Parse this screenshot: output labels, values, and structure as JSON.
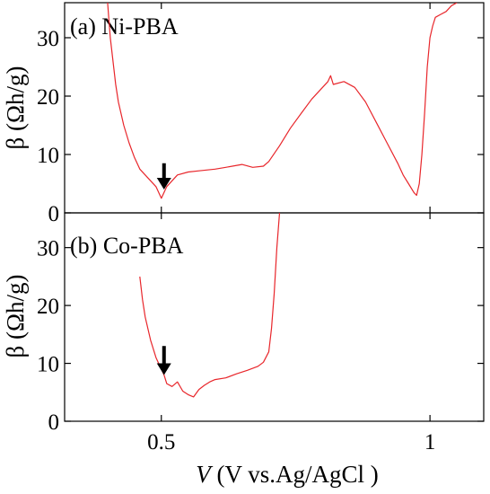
{
  "chart_data": [
    {
      "type": "line",
      "panel_label": "(a) Ni-PBA",
      "ylabel": "β (Ωh/g)",
      "xlabel": "",
      "xlim": [
        0.32,
        1.1
      ],
      "ylim": [
        0,
        36
      ],
      "yticks": [
        0,
        10,
        20,
        30
      ],
      "xticks": [
        0.5,
        1
      ],
      "xticklabels": [
        "",
        ""
      ],
      "grid": false,
      "series": [
        {
          "color": "#e8262b",
          "x": [
            0.4,
            0.405,
            0.41,
            0.415,
            0.42,
            0.43,
            0.44,
            0.45,
            0.46,
            0.47,
            0.48,
            0.49,
            0.495,
            0.5,
            0.505,
            0.51,
            0.52,
            0.53,
            0.55,
            0.57,
            0.6,
            0.62,
            0.65,
            0.67,
            0.69,
            0.7,
            0.72,
            0.74,
            0.76,
            0.78,
            0.8,
            0.81,
            0.815,
            0.82,
            0.84,
            0.86,
            0.88,
            0.9,
            0.92,
            0.94,
            0.95,
            0.96,
            0.97,
            0.975,
            0.98,
            0.985,
            0.99,
            0.995,
            1.0,
            1.005,
            1.01,
            1.02,
            1.03,
            1.04,
            1.05
          ],
          "y": [
            36,
            30,
            26,
            22,
            19,
            15,
            12,
            9.5,
            7.5,
            6.5,
            5.5,
            4.5,
            3.5,
            2.5,
            3.5,
            4.5,
            5.5,
            6.5,
            7.0,
            7.2,
            7.5,
            7.8,
            8.3,
            7.8,
            8.0,
            8.8,
            11.5,
            14.5,
            17.0,
            19.5,
            21.5,
            22.5,
            23.5,
            22.0,
            22.5,
            21.5,
            19.0,
            15.5,
            12.0,
            8.5,
            6.5,
            5.0,
            3.5,
            3.0,
            5.0,
            10.0,
            17.0,
            25.0,
            30.0,
            32.0,
            33.5,
            34.0,
            34.5,
            35.5,
            36
          ]
        }
      ],
      "annotations": [
        {
          "type": "arrow",
          "x": 0.505,
          "y_from": 8.5,
          "y_to": 4.0
        }
      ]
    },
    {
      "type": "line",
      "panel_label": "(b) Co-PBA",
      "ylabel": "β (Ωh/g)",
      "xlabel": "V (V vs.Ag/AgCl )",
      "xlim": [
        0.32,
        1.1
      ],
      "ylim": [
        0,
        36
      ],
      "yticks": [
        0,
        10,
        20,
        30
      ],
      "xticks": [
        0.5,
        1
      ],
      "xticklabels": [
        "0.5",
        "1"
      ],
      "grid": false,
      "series": [
        {
          "color": "#e8262b",
          "x": [
            0.46,
            0.465,
            0.47,
            0.475,
            0.48,
            0.485,
            0.49,
            0.495,
            0.5,
            0.505,
            0.51,
            0.52,
            0.53,
            0.54,
            0.55,
            0.56,
            0.57,
            0.58,
            0.59,
            0.6,
            0.62,
            0.64,
            0.66,
            0.68,
            0.69,
            0.7,
            0.705,
            0.71,
            0.715,
            0.72
          ],
          "y": [
            25,
            21,
            18,
            16,
            14,
            12.5,
            11.0,
            10.0,
            9.0,
            8.0,
            6.5,
            6.0,
            6.8,
            5.2,
            4.6,
            4.2,
            5.5,
            6.2,
            6.8,
            7.2,
            7.5,
            8.2,
            8.8,
            9.5,
            10.2,
            12.0,
            16.0,
            22.0,
            30.0,
            36
          ]
        }
      ],
      "annotations": [
        {
          "type": "arrow",
          "x": 0.505,
          "y_from": 13.0,
          "y_to": 8.0
        }
      ]
    }
  ]
}
